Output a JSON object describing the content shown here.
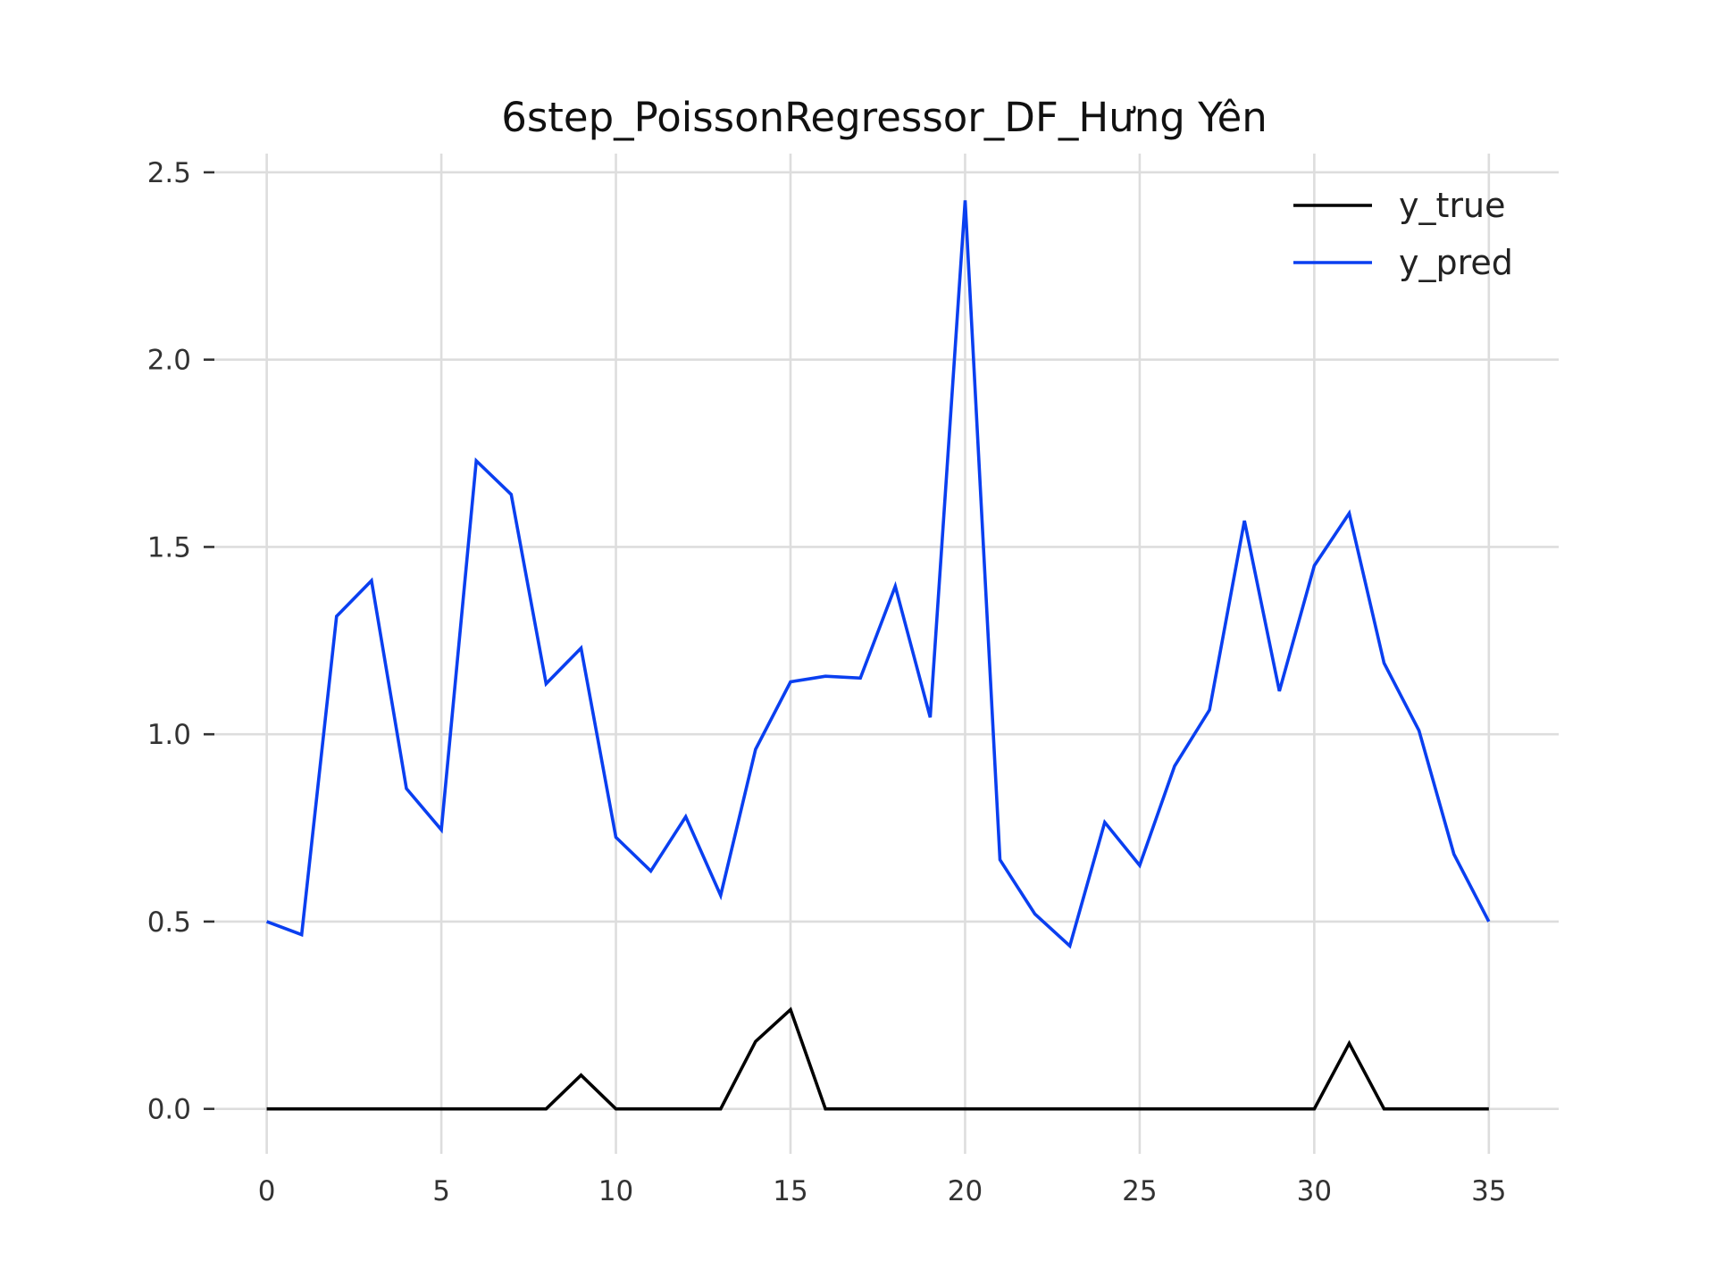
{
  "chart_data": {
    "type": "line",
    "title": "6step_PoissonRegressor_DF_Hưng Yên",
    "xlabel": "",
    "ylabel": "",
    "x": [
      0,
      1,
      2,
      3,
      4,
      5,
      6,
      7,
      8,
      9,
      10,
      11,
      12,
      13,
      14,
      15,
      16,
      17,
      18,
      19,
      20,
      21,
      22,
      23,
      24,
      25,
      26,
      27,
      28,
      29,
      30,
      31,
      32,
      33,
      34,
      35
    ],
    "xlim": [
      -1.5,
      37
    ],
    "ylim": [
      -0.12,
      2.55
    ],
    "xticks": [
      0,
      5,
      10,
      15,
      20,
      25,
      30,
      35
    ],
    "yticks": [
      0.0,
      0.5,
      1.0,
      1.5,
      2.0,
      2.5
    ],
    "xtick_labels": [
      "0",
      "5",
      "10",
      "15",
      "20",
      "25",
      "30",
      "35"
    ],
    "ytick_labels": [
      "0.0",
      "0.5",
      "1.0",
      "1.5",
      "2.0",
      "2.5"
    ],
    "grid": true,
    "legend_position": "top-right",
    "series": [
      {
        "name": "y_true",
        "color": "#000000",
        "values": [
          0,
          0,
          0,
          0,
          0,
          0,
          0,
          0,
          0,
          0.09,
          0,
          0,
          0,
          0,
          0.18,
          0.265,
          0,
          0,
          0,
          0,
          0,
          0,
          0,
          0,
          0,
          0,
          0,
          0,
          0,
          0,
          0,
          0.175,
          0,
          0,
          0,
          0
        ]
      },
      {
        "name": "y_pred",
        "color": "#0a3ff0",
        "values": [
          0.5,
          0.465,
          1.315,
          1.41,
          0.855,
          0.745,
          1.73,
          1.64,
          1.135,
          1.23,
          0.725,
          0.635,
          0.78,
          0.57,
          0.96,
          1.14,
          1.155,
          1.15,
          1.395,
          1.045,
          2.425,
          0.665,
          0.52,
          0.435,
          0.765,
          0.65,
          0.915,
          1.065,
          1.57,
          1.115,
          1.45,
          1.59,
          1.19,
          1.01,
          0.68,
          0.5
        ]
      }
    ]
  }
}
